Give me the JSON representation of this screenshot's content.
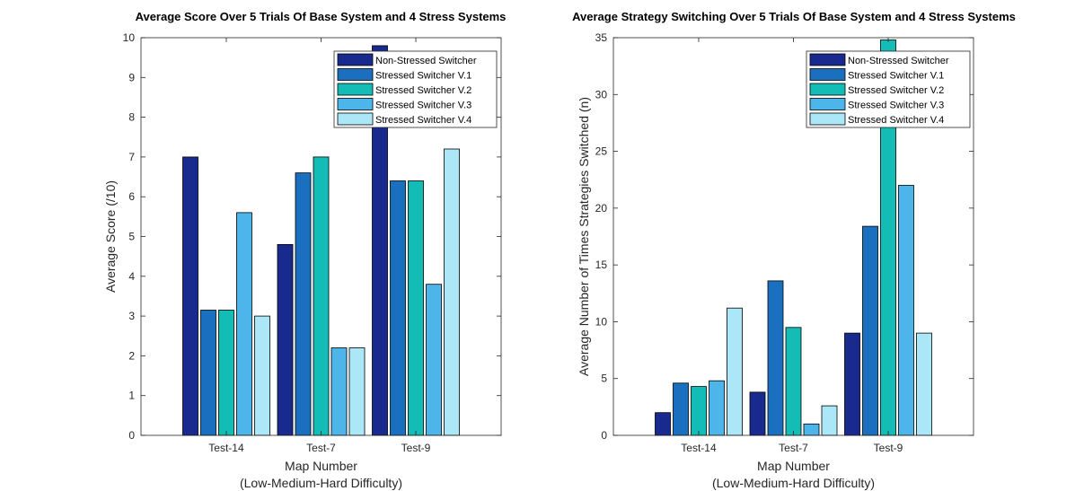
{
  "chart_data": [
    {
      "type": "bar",
      "title": "Average Score Over 5 Trials Of Base System and 4 Stress Systems",
      "xlabel": "Map Number",
      "xlabel2": "(Low-Medium-Hard Difficulty)",
      "ylabel": "Average Score (/10)",
      "ylim": [
        0,
        10
      ],
      "yticks": [
        0,
        1,
        2,
        3,
        4,
        5,
        6,
        7,
        8,
        9,
        10
      ],
      "categories": [
        "Test-14",
        "Test-7",
        "Test-9"
      ],
      "legend_position": "top-right",
      "series": [
        {
          "name": "Non-Stressed Switcher",
          "color": "#182a8e",
          "values": [
            7.0,
            4.8,
            9.8
          ]
        },
        {
          "name": "Stressed Switcher V.1",
          "color": "#1a6fbf",
          "values": [
            3.15,
            6.6,
            6.4
          ]
        },
        {
          "name": "Stressed Switcher V.2",
          "color": "#14bcb6",
          "values": [
            3.15,
            7.0,
            6.4
          ]
        },
        {
          "name": "Stressed Switcher V.3",
          "color": "#4db5ea",
          "values": [
            5.6,
            2.2,
            3.8
          ]
        },
        {
          "name": "Stressed Switcher V.4",
          "color": "#ace7f7",
          "values": [
            3.0,
            2.2,
            7.2
          ]
        }
      ]
    },
    {
      "type": "bar",
      "title": "Average Strategy Switching Over 5 Trials Of Base System and 4 Stress Systems",
      "xlabel": "Map Number",
      "xlabel2": "(Low-Medium-Hard Difficulty)",
      "ylabel": "Average Number of Times Strategies Switched (n)",
      "ylim": [
        0,
        35
      ],
      "yticks": [
        0,
        5,
        10,
        15,
        20,
        25,
        30,
        35
      ],
      "categories": [
        "Test-14",
        "Test-7",
        "Test-9"
      ],
      "legend_position": "top-right",
      "series": [
        {
          "name": "Non-Stressed Switcher",
          "color": "#182a8e",
          "values": [
            2.0,
            3.8,
            9.0
          ]
        },
        {
          "name": "Stressed Switcher V.1",
          "color": "#1a6fbf",
          "values": [
            4.6,
            13.6,
            18.4
          ]
        },
        {
          "name": "Stressed Switcher V.2",
          "color": "#14bcb6",
          "values": [
            4.3,
            9.5,
            34.8
          ]
        },
        {
          "name": "Stressed Switcher V.3",
          "color": "#4db5ea",
          "values": [
            4.8,
            1.0,
            22.0
          ]
        },
        {
          "name": "Stressed Switcher V.4",
          "color": "#ace7f7",
          "values": [
            11.2,
            2.6,
            9.0
          ]
        }
      ]
    }
  ]
}
